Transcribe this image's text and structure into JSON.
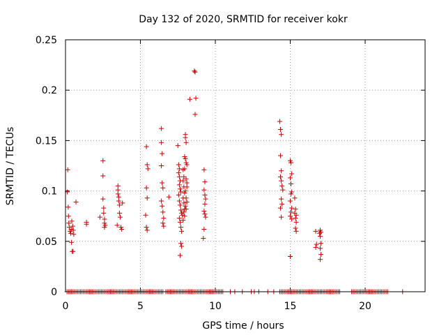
{
  "chart_data": {
    "type": "scatter",
    "title": "Day 132 of 2020, SRMTID for receiver kokr",
    "xlabel": "GPS time / hours",
    "ylabel": "SRMTID / TECUs",
    "xlim": [
      0,
      24
    ],
    "ylim": [
      0,
      0.25
    ],
    "xticks": [
      0,
      5,
      10,
      15,
      20
    ],
    "xtick_labels": [
      "0",
      "5",
      "10",
      "15",
      "20"
    ],
    "yticks": [
      0,
      0.05,
      0.1,
      0.15,
      0.2,
      0.25
    ],
    "ytick_labels": [
      "0",
      "0.05",
      "0.1",
      "0.15",
      "0.2",
      "0.25"
    ],
    "grid": true,
    "legend": "none",
    "marker": "plus",
    "color": "#cc0000",
    "series": [
      {
        "points": [
          [
            0.15,
            0.121
          ],
          [
            0.12,
            0.099
          ],
          [
            0.18,
            0.084
          ],
          [
            0.2,
            0.075
          ],
          [
            0.22,
            0.068
          ],
          [
            0.25,
            0.064
          ],
          [
            0.3,
            0.06
          ],
          [
            0.35,
            0.058
          ],
          [
            0.38,
            0.062
          ],
          [
            0.4,
            0.049
          ],
          [
            0.45,
            0.04
          ],
          [
            0.5,
            0.04
          ],
          [
            0.42,
            0.07
          ],
          [
            0.48,
            0.065
          ],
          [
            0.52,
            0.061
          ],
          [
            0.55,
            0.057
          ],
          [
            0.7,
            0.089
          ],
          [
            1.4,
            0.069
          ],
          [
            1.4,
            0.067
          ],
          [
            2.3,
            0.074
          ],
          [
            2.5,
            0.13
          ],
          [
            2.5,
            0.115
          ],
          [
            2.5,
            0.092
          ],
          [
            2.55,
            0.083
          ],
          [
            2.55,
            0.078
          ],
          [
            2.6,
            0.072
          ],
          [
            2.6,
            0.068
          ],
          [
            2.65,
            0.066
          ],
          [
            2.6,
            0.064
          ],
          [
            3.5,
            0.105
          ],
          [
            3.5,
            0.101
          ],
          [
            3.5,
            0.097
          ],
          [
            3.55,
            0.094
          ],
          [
            3.55,
            0.09
          ],
          [
            3.6,
            0.086
          ],
          [
            3.6,
            0.078
          ],
          [
            3.65,
            0.074
          ],
          [
            3.7,
            0.064
          ],
          [
            3.75,
            0.062
          ],
          [
            3.8,
            0.088
          ],
          [
            3.45,
            0.066
          ],
          [
            5.4,
            0.144
          ],
          [
            5.45,
            0.126
          ],
          [
            5.5,
            0.122
          ],
          [
            5.4,
            0.103
          ],
          [
            5.45,
            0.093
          ],
          [
            5.35,
            0.076
          ],
          [
            5.4,
            0.064
          ],
          [
            5.45,
            0.061
          ],
          [
            6.4,
            0.162
          ],
          [
            6.4,
            0.148
          ],
          [
            6.45,
            0.137
          ],
          [
            6.4,
            0.125
          ],
          [
            6.45,
            0.108
          ],
          [
            6.5,
            0.103
          ],
          [
            6.4,
            0.09
          ],
          [
            6.45,
            0.085
          ],
          [
            6.5,
            0.079
          ],
          [
            6.55,
            0.073
          ],
          [
            6.5,
            0.068
          ],
          [
            6.55,
            0.065
          ],
          [
            6.9,
            0.094
          ],
          [
            7.5,
            0.145
          ],
          [
            7.55,
            0.126
          ],
          [
            7.6,
            0.122
          ],
          [
            7.55,
            0.118
          ],
          [
            7.6,
            0.114
          ],
          [
            7.65,
            0.11
          ],
          [
            7.6,
            0.106
          ],
          [
            7.65,
            0.102
          ],
          [
            7.7,
            0.099
          ],
          [
            7.55,
            0.096
          ],
          [
            7.6,
            0.09
          ],
          [
            7.65,
            0.086
          ],
          [
            7.7,
            0.081
          ],
          [
            7.75,
            0.078
          ],
          [
            7.8,
            0.076
          ],
          [
            7.6,
            0.073
          ],
          [
            7.65,
            0.069
          ],
          [
            7.7,
            0.064
          ],
          [
            7.75,
            0.06
          ],
          [
            7.7,
            0.048
          ],
          [
            7.75,
            0.045
          ],
          [
            7.65,
            0.036
          ],
          [
            7.85,
            0.121
          ],
          [
            7.9,
            0.114
          ],
          [
            7.85,
            0.11
          ],
          [
            7.9,
            0.104
          ],
          [
            7.95,
            0.098
          ],
          [
            7.85,
            0.093
          ],
          [
            7.9,
            0.088
          ],
          [
            7.95,
            0.082
          ],
          [
            7.9,
            0.079
          ],
          [
            7.95,
            0.075
          ],
          [
            7.85,
            0.071
          ],
          [
            8.0,
            0.156
          ],
          [
            8.0,
            0.153
          ],
          [
            8.05,
            0.148
          ],
          [
            7.95,
            0.134
          ],
          [
            8.0,
            0.132
          ],
          [
            8.05,
            0.128
          ],
          [
            8.1,
            0.126
          ],
          [
            8.05,
            0.112
          ],
          [
            8.1,
            0.108
          ],
          [
            8.0,
            0.1
          ],
          [
            8.05,
            0.093
          ],
          [
            8.1,
            0.089
          ],
          [
            8.0,
            0.085
          ],
          [
            8.05,
            0.082
          ],
          [
            7.95,
            0.122
          ],
          [
            8.1,
            0.104
          ],
          [
            8.3,
            0.191
          ],
          [
            8.6,
            0.219
          ],
          [
            8.65,
            0.218
          ],
          [
            8.7,
            0.192
          ],
          [
            8.65,
            0.176
          ],
          [
            9.25,
            0.121
          ],
          [
            9.3,
            0.109
          ],
          [
            9.25,
            0.101
          ],
          [
            9.3,
            0.096
          ],
          [
            9.35,
            0.092
          ],
          [
            9.3,
            0.087
          ],
          [
            9.25,
            0.08
          ],
          [
            9.3,
            0.077
          ],
          [
            9.35,
            0.074
          ],
          [
            9.25,
            0.062
          ],
          [
            9.2,
            0.053
          ],
          [
            14.3,
            0.169
          ],
          [
            14.35,
            0.161
          ],
          [
            14.4,
            0.156
          ],
          [
            14.35,
            0.135
          ],
          [
            14.4,
            0.12
          ],
          [
            14.35,
            0.114
          ],
          [
            14.4,
            0.11
          ],
          [
            14.45,
            0.105
          ],
          [
            14.5,
            0.101
          ],
          [
            14.4,
            0.092
          ],
          [
            14.45,
            0.087
          ],
          [
            14.35,
            0.083
          ],
          [
            14.4,
            0.074
          ],
          [
            15.0,
            0.13
          ],
          [
            15.05,
            0.128
          ],
          [
            15.1,
            0.117
          ],
          [
            15.0,
            0.113
          ],
          [
            15.05,
            0.107
          ],
          [
            15.1,
            0.099
          ],
          [
            15.05,
            0.097
          ],
          [
            15.0,
            0.09
          ],
          [
            15.1,
            0.083
          ],
          [
            15.05,
            0.079
          ],
          [
            15.0,
            0.075
          ],
          [
            15.1,
            0.072
          ],
          [
            15.0,
            0.035
          ],
          [
            15.3,
            0.093
          ],
          [
            15.35,
            0.082
          ],
          [
            15.3,
            0.078
          ],
          [
            15.4,
            0.076
          ],
          [
            15.35,
            0.073
          ],
          [
            15.4,
            0.069
          ],
          [
            15.35,
            0.063
          ],
          [
            15.4,
            0.06
          ],
          [
            16.7,
            0.06
          ],
          [
            16.75,
            0.047
          ],
          [
            16.7,
            0.044
          ],
          [
            16.95,
            0.058
          ],
          [
            17.0,
            0.061
          ],
          [
            17.05,
            0.059
          ],
          [
            17.0,
            0.055
          ],
          [
            17.05,
            0.048
          ],
          [
            17.0,
            0.043
          ],
          [
            17.05,
            0.037
          ],
          [
            17.0,
            0.032
          ]
        ],
        "zero_x": [
          0.1,
          0.2,
          0.3,
          0.4,
          0.5,
          0.6,
          0.7,
          0.8,
          0.9,
          1.0,
          1.1,
          1.2,
          1.3,
          1.4,
          1.5,
          1.6,
          1.7,
          1.8,
          1.9,
          2.0,
          2.1,
          2.2,
          2.3,
          2.4,
          2.5,
          2.6,
          2.7,
          2.8,
          2.9,
          3.0,
          3.1,
          3.2,
          3.3,
          3.4,
          3.5,
          3.6,
          3.7,
          3.8,
          3.9,
          4.0,
          4.1,
          4.2,
          4.3,
          4.4,
          4.5,
          4.6,
          4.7,
          4.8,
          4.9,
          5.0,
          5.1,
          5.2,
          5.3,
          5.4,
          5.5,
          5.6,
          5.7,
          5.8,
          5.9,
          6.0,
          6.1,
          6.2,
          6.3,
          6.4,
          6.5,
          6.7,
          6.8,
          6.9,
          7.0,
          7.1,
          7.2,
          7.3,
          7.4,
          7.5,
          7.6,
          7.7,
          7.8,
          7.9,
          8.0,
          8.1,
          8.2,
          8.3,
          8.4,
          8.5,
          8.6,
          8.7,
          8.8,
          8.9,
          9.0,
          9.1,
          9.2,
          9.3,
          9.4,
          9.5,
          9.6,
          9.7,
          9.8,
          9.9,
          10.0,
          10.1,
          10.2,
          10.3,
          10.4,
          10.5,
          11.0,
          11.3,
          11.8,
          12.4,
          12.6,
          12.9,
          13.5,
          13.9,
          14.3,
          14.4,
          14.5,
          14.6,
          14.7,
          14.8,
          14.9,
          15.0,
          15.1,
          15.2,
          15.3,
          15.4,
          15.5,
          15.6,
          15.7,
          15.8,
          15.9,
          16.0,
          16.1,
          16.2,
          16.3,
          16.4,
          16.5,
          16.6,
          16.7,
          16.8,
          16.9,
          17.0,
          17.1,
          17.2,
          17.3,
          17.4,
          17.5,
          17.6,
          17.7,
          17.8,
          17.9,
          18.0,
          18.1,
          18.2,
          18.3,
          19.1,
          19.2,
          19.3,
          19.4,
          19.5,
          19.6,
          19.7,
          19.8,
          19.9,
          20.0,
          20.1,
          20.2,
          20.3,
          20.4,
          20.5,
          20.6,
          20.7,
          20.8,
          20.9,
          21.0,
          21.1,
          21.2,
          21.3,
          21.4,
          21.5,
          22.5
        ]
      }
    ]
  }
}
